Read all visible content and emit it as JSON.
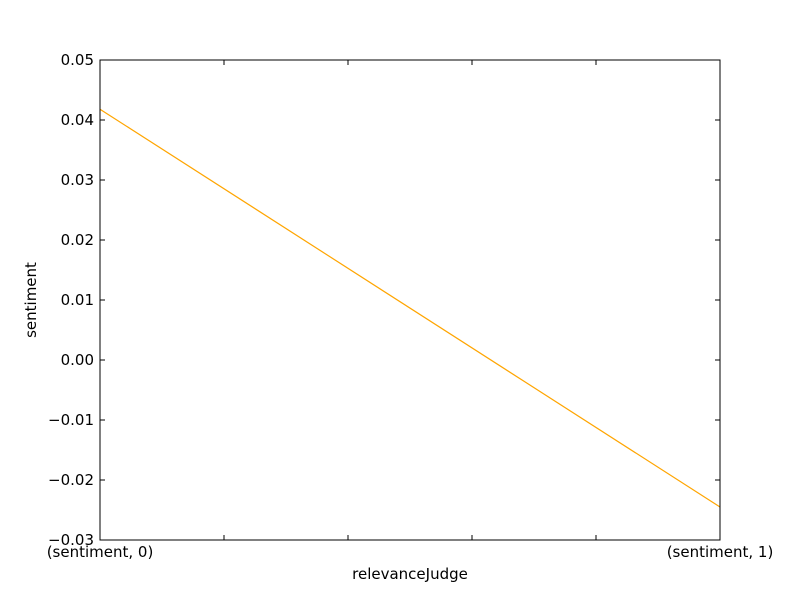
{
  "chart_data": {
    "type": "line",
    "title": "",
    "xlabel": "relevanceJudge",
    "ylabel": "sentiment",
    "x_ticks": [
      "(sentiment, 0)",
      "",
      "",
      "",
      "",
      "(sentiment, 1)"
    ],
    "ylim": [
      -0.03,
      0.05
    ],
    "y_ticks": [
      "−0.03",
      "−0.02",
      "−0.01",
      "0.00",
      "0.01",
      "0.02",
      "0.03",
      "0.04",
      "0.05"
    ],
    "y_tick_values": [
      -0.03,
      -0.02,
      -0.01,
      0.0,
      0.01,
      0.02,
      0.03,
      0.04,
      0.05
    ],
    "grid": false,
    "series": [
      {
        "color": "#ffa500",
        "x": [
          "(sentiment, 0)",
          "(sentiment, 1)"
        ],
        "values": [
          0.0418,
          -0.0245
        ]
      }
    ]
  }
}
